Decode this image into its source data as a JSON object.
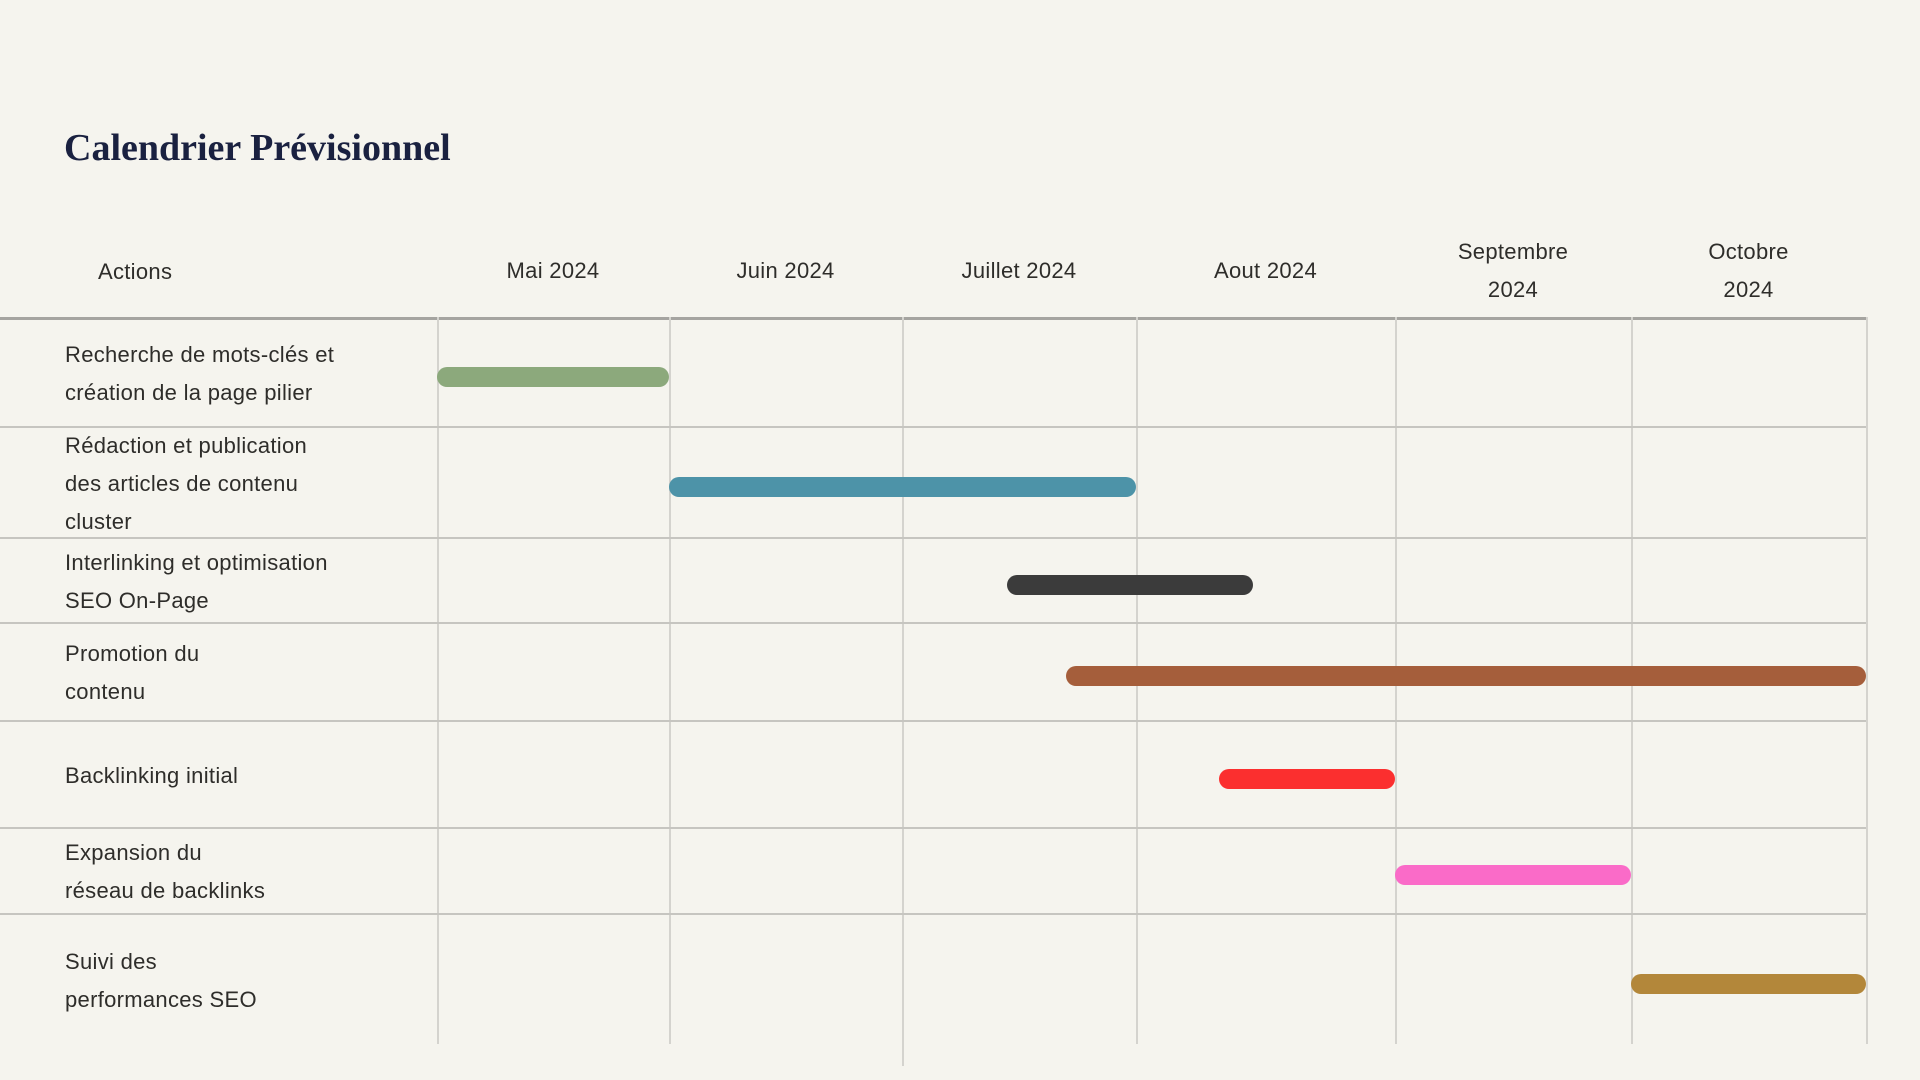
{
  "chart_data": {
    "type": "gantt",
    "title": "Calendrier Prévisionnel",
    "actions_header": "Actions",
    "x_axis": {
      "unit": "month",
      "range_start": "Mai 2024",
      "range_end": "Octobre 2024"
    },
    "months": [
      {
        "label": "Mai 2024",
        "lines": [
          "Mai 2024"
        ]
      },
      {
        "label": "Juin 2024",
        "lines": [
          "Juin 2024"
        ]
      },
      {
        "label": "Juillet 2024",
        "lines": [
          "Juillet 2024"
        ]
      },
      {
        "label": "Aout 2024",
        "lines": [
          "Aout 2024"
        ]
      },
      {
        "label": "Septembre 2024",
        "lines": [
          "Septembre",
          "2024"
        ]
      },
      {
        "label": "Octobre 2024",
        "lines": [
          "Octobre",
          "2024"
        ]
      }
    ],
    "tasks": [
      {
        "label": "Recherche de mots-clés et création de la page pilier",
        "lines": [
          "Recherche de mots-clés et",
          "création de la page pilier"
        ],
        "start": 0,
        "end": 1,
        "color": "#8CA97C"
      },
      {
        "label": "Rédaction et publication des articles de contenu cluster",
        "lines": [
          "Rédaction et publication",
          "des articles de contenu",
          "cluster"
        ],
        "start": 1,
        "end": 3,
        "color": "#4D93A8"
      },
      {
        "label": "Interlinking et optimisation SEO On-Page",
        "lines": [
          "Interlinking et optimisation",
          "SEO On-Page"
        ],
        "start": 2.45,
        "end": 3.45,
        "color": "#3B3B3B"
      },
      {
        "label": "Promotion du contenu",
        "lines": [
          "Promotion du",
          "contenu"
        ],
        "start": 2.7,
        "end": 6,
        "color": "#A55E3B"
      },
      {
        "label": "Backlinking initial",
        "lines": [
          "Backlinking initial"
        ],
        "start": 3.32,
        "end": 4,
        "color": "#FB2F2F"
      },
      {
        "label": "Expansion du réseau de backlinks",
        "lines": [
          "Expansion du",
          "réseau de backlinks"
        ],
        "start": 4,
        "end": 5,
        "color": "#FA6BC8"
      },
      {
        "label": "Suivi des performances SEO",
        "lines": [
          "Suivi des",
          "performances SEO"
        ],
        "start": 5,
        "end": 6,
        "color": "#B3873A"
      }
    ],
    "colors": {
      "background": "#F5F4EE",
      "title_text": "#1A2140",
      "body_text": "#2E2D2A",
      "grid_vertical": "#D4D3CE",
      "grid_horizontal": "#C6C5C0",
      "header_rule": "#A5A4A0"
    }
  }
}
